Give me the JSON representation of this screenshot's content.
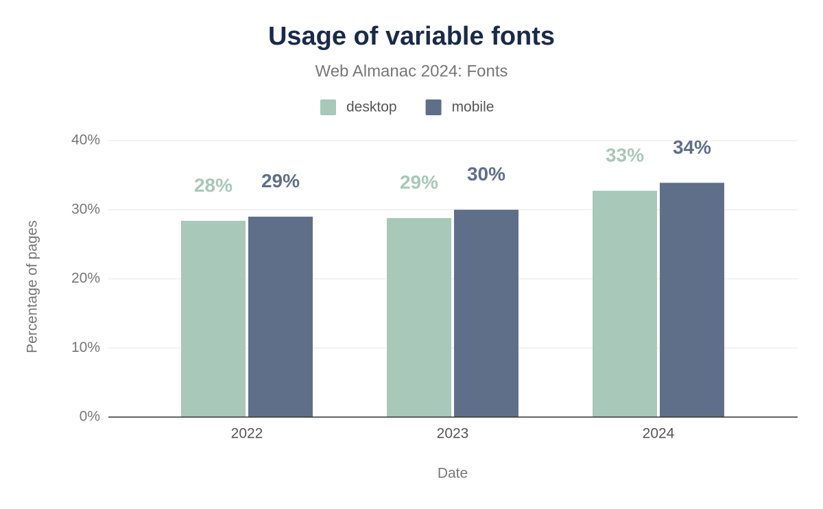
{
  "chart_data": {
    "type": "bar",
    "title": "Usage of variable fonts",
    "subtitle": "Web Almanac 2024: Fonts",
    "x_label": "Date",
    "y_label": "Percentage of pages",
    "categories": [
      "2022",
      "2023",
      "2024"
    ],
    "series": [
      {
        "name": "desktop",
        "color": "#a8c8b9",
        "values": [
          28.4,
          28.8,
          32.75
        ],
        "value_labels": [
          "28%",
          "29%",
          "33%"
        ]
      },
      {
        "name": "mobile",
        "color": "#5f6f8a",
        "values": [
          29.0,
          30.0,
          33.9
        ],
        "value_labels": [
          "29%",
          "30%",
          "34%"
        ]
      }
    ],
    "ylim": [
      0,
      40
    ],
    "yticks": [
      {
        "value": 0,
        "label": "0%"
      },
      {
        "value": 10,
        "label": "10%"
      },
      {
        "value": 20,
        "label": "20%"
      },
      {
        "value": 30,
        "label": "30%"
      },
      {
        "value": 40,
        "label": "40%"
      }
    ],
    "grid": true,
    "legend": "top"
  }
}
